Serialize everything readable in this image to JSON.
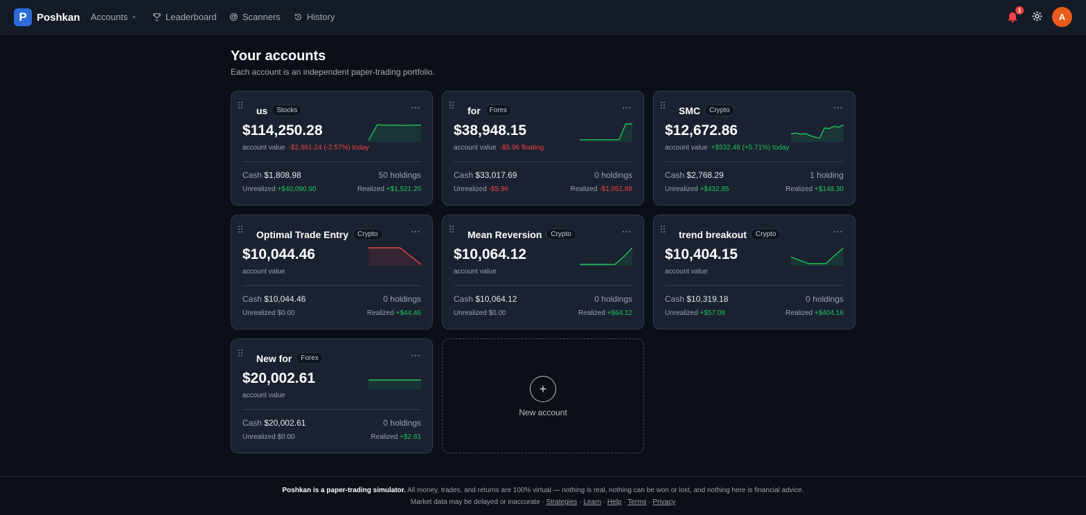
{
  "brand": {
    "logo_letter": "P",
    "name": "Poshkan"
  },
  "nav": {
    "accounts": "Accounts",
    "leaderboard": "Leaderboard",
    "scanners": "Scanners",
    "history": "History"
  },
  "user": {
    "notification_count": "1",
    "avatar_initial": "A"
  },
  "page": {
    "title": "Your accounts",
    "subtitle": "Each account is an independent paper-trading portfolio."
  },
  "accounts": [
    {
      "name": "us",
      "tag": "Stocks",
      "value": "$114,250.28",
      "value_label": "account value",
      "change": "-$2,961.24 (-2.57%) today",
      "change_color": "#ef4444",
      "cash_label": "Cash",
      "cash": "$1,808.98",
      "holdings": "50 holdings",
      "unrealized_label": "Unrealized",
      "unrealized": "+$40,090.90",
      "unrealized_color": "#22c55e",
      "realized_label": "Realized",
      "realized": "+$1,521.20",
      "realized_color": "#22c55e",
      "spark_color": "#22c55e",
      "spark": [
        0.0,
        0.95,
        0.92,
        0.93,
        0.91,
        0.92,
        0.93
      ]
    },
    {
      "name": "for",
      "tag": "Forex",
      "value": "$38,948.15",
      "value_label": "account value",
      "change": "-$5.96 floating",
      "change_color": "#ef4444",
      "cash_label": "Cash",
      "cash": "$33,017.69",
      "holdings": "0 holdings",
      "unrealized_label": "Unrealized",
      "unrealized": "-$5.96",
      "unrealized_color": "#ef4444",
      "realized_label": "Realized",
      "realized": "-$1,051.88",
      "realized_color": "#ef4444",
      "spark_color": "#22c55e",
      "spark": [
        0.05,
        0.05,
        0.05,
        0.05,
        0.05,
        0.05,
        0.06,
        1.0,
        1.0
      ]
    },
    {
      "name": "SMC",
      "tag": "Crypto",
      "value": "$12,672.86",
      "value_label": "account value",
      "change": "+$532.48 (+5.71%) today",
      "change_color": "#22c55e",
      "cash_label": "Cash",
      "cash": "$2,768.29",
      "holdings": "1 holding",
      "unrealized_label": "Unrealized",
      "unrealized": "+$432.85",
      "unrealized_color": "#22c55e",
      "realized_label": "Realized",
      "realized": "+$148.30",
      "realized_color": "#22c55e",
      "spark_color": "#22c55e",
      "spark": [
        0.4,
        0.45,
        0.38,
        0.42,
        0.3,
        0.2,
        0.15,
        0.75,
        0.72,
        0.85,
        0.8,
        0.95
      ]
    },
    {
      "name": "Optimal Trade Entry",
      "tag": "Crypto",
      "value": "$10,044.46",
      "value_label": "account value",
      "change": "",
      "change_color": "#9aa2b1",
      "cash_label": "Cash",
      "cash": "$10,044.46",
      "holdings": "0 holdings",
      "unrealized_label": "Unrealized",
      "unrealized": "$0.00",
      "unrealized_color": "#9aa2b1",
      "realized_label": "Realized",
      "realized": "+$44.46",
      "realized_color": "#22c55e",
      "spark_color": "#ef4444",
      "spark": [
        1.0,
        1.0,
        1.0,
        1.0,
        0.5,
        0.0
      ]
    },
    {
      "name": "Mean Reversion",
      "tag": "Crypto",
      "value": "$10,064.12",
      "value_label": "account value",
      "change": "",
      "change_color": "#9aa2b1",
      "cash_label": "Cash",
      "cash": "$10,064.12",
      "holdings": "0 holdings",
      "unrealized_label": "Unrealized",
      "unrealized": "$0.00",
      "unrealized_color": "#9aa2b1",
      "realized_label": "Realized",
      "realized": "+$64.12",
      "realized_color": "#22c55e",
      "spark_color": "#22c55e",
      "spark": [
        0.0,
        0.0,
        0.0,
        0.0,
        0.0,
        0.45,
        1.0
      ]
    },
    {
      "name": "trend breakout",
      "tag": "Crypto",
      "value": "$10,404.15",
      "value_label": "account value",
      "change": "",
      "change_color": "#9aa2b1",
      "cash_label": "Cash",
      "cash": "$10,319.18",
      "holdings": "0 holdings",
      "unrealized_label": "Unrealized",
      "unrealized": "+$57.08",
      "unrealized_color": "#22c55e",
      "realized_label": "Realized",
      "realized": "+$404.16",
      "realized_color": "#22c55e",
      "spark_color": "#22c55e",
      "spark": [
        0.45,
        0.25,
        0.05,
        0.05,
        0.05,
        0.55,
        1.0
      ]
    },
    {
      "name": "New for",
      "tag": "Forex",
      "value": "$20,002.61",
      "value_label": "account value",
      "change": "",
      "change_color": "#9aa2b1",
      "cash_label": "Cash",
      "cash": "$20,002.61",
      "holdings": "0 holdings",
      "unrealized_label": "Unrealized",
      "unrealized": "$0.00",
      "unrealized_color": "#9aa2b1",
      "realized_label": "Realized",
      "realized": "+$2.61",
      "realized_color": "#22c55e",
      "spark_color": "#22c55e",
      "spark": [
        0.5,
        0.5,
        0.5,
        0.5,
        0.5,
        0.5
      ]
    }
  ],
  "new_account": {
    "label": "New account",
    "plus": "+"
  },
  "footer": {
    "line1_bold": "Poshkan is a paper-trading simulator.",
    "line1_rest": " All money, trades, and returns are 100% virtual — nothing is real, nothing can be won or lost, and nothing here is financial advice.",
    "line2_text": "Market data may be delayed or inaccurate · ",
    "links": [
      "Strategies",
      "Learn",
      "Help",
      "Terms",
      "Privacy"
    ],
    "separator": " · "
  },
  "colors": {
    "positive": "#22c55e",
    "negative": "#ef4444",
    "accent": "#2f6bd8",
    "avatar": "#ea5c1c"
  }
}
